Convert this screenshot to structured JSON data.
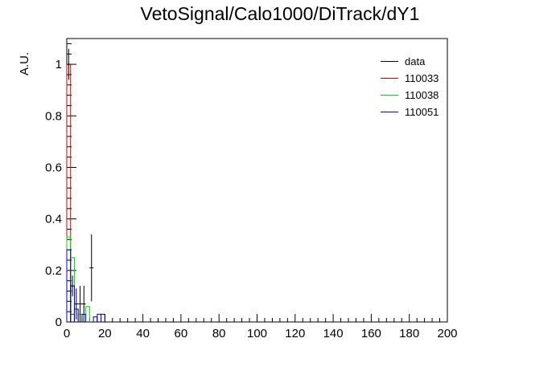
{
  "chart_data": {
    "type": "bar",
    "title": "VetoSignal/Calo1000/DiTrack/dY1",
    "xlabel": "",
    "ylabel": "A.U.",
    "xlim": [
      0,
      200
    ],
    "ylim": [
      0,
      1.1
    ],
    "x_ticks": [
      0,
      20,
      40,
      60,
      80,
      100,
      120,
      140,
      160,
      180,
      200
    ],
    "y_ticks": [
      0,
      0.2,
      0.4,
      0.6,
      0.8,
      1
    ],
    "y_tick_labels": [
      "0",
      "0.2",
      "0.4",
      "0.6",
      "0.8",
      "1"
    ],
    "bin_width": 2,
    "grid": false,
    "legend_position": "top-right",
    "series": [
      {
        "name": "data",
        "kind": "points-with-errors",
        "color": "#000000",
        "points": [
          {
            "x": 1,
            "y": 1.0,
            "err": 0.06
          },
          {
            "x": 3,
            "y": 0.14,
            "err": 0.04
          },
          {
            "x": 5,
            "y": 0.07,
            "err": 0.06
          },
          {
            "x": 7,
            "y": 0.07,
            "err": 0.07
          },
          {
            "x": 9,
            "y": 0.07,
            "err": 0.07
          },
          {
            "x": 13,
            "y": 0.21,
            "err": 0.13
          }
        ]
      },
      {
        "name": "110033",
        "kind": "histogram",
        "color": "#cc0000",
        "bins": [
          {
            "x": 1,
            "y": 1.0
          },
          {
            "x": 3,
            "y": 0.03
          }
        ]
      },
      {
        "name": "110038",
        "kind": "histogram",
        "color": "#00dd00",
        "bins": [
          {
            "x": 1,
            "y": 0.33
          },
          {
            "x": 3,
            "y": 0.25
          },
          {
            "x": 5,
            "y": 0.05
          },
          {
            "x": 7,
            "y": 0.03
          },
          {
            "x": 11,
            "y": 0.06
          }
        ]
      },
      {
        "name": "110051",
        "kind": "histogram",
        "color": "#0000cc",
        "bins": [
          {
            "x": 1,
            "y": 0.28
          },
          {
            "x": 3,
            "y": 0.14
          },
          {
            "x": 5,
            "y": 0.05
          },
          {
            "x": 9,
            "y": 0.03
          },
          {
            "x": 15,
            "y": 0.02
          },
          {
            "x": 17,
            "y": 0.03
          },
          {
            "x": 19,
            "y": 0.03
          }
        ]
      }
    ]
  }
}
